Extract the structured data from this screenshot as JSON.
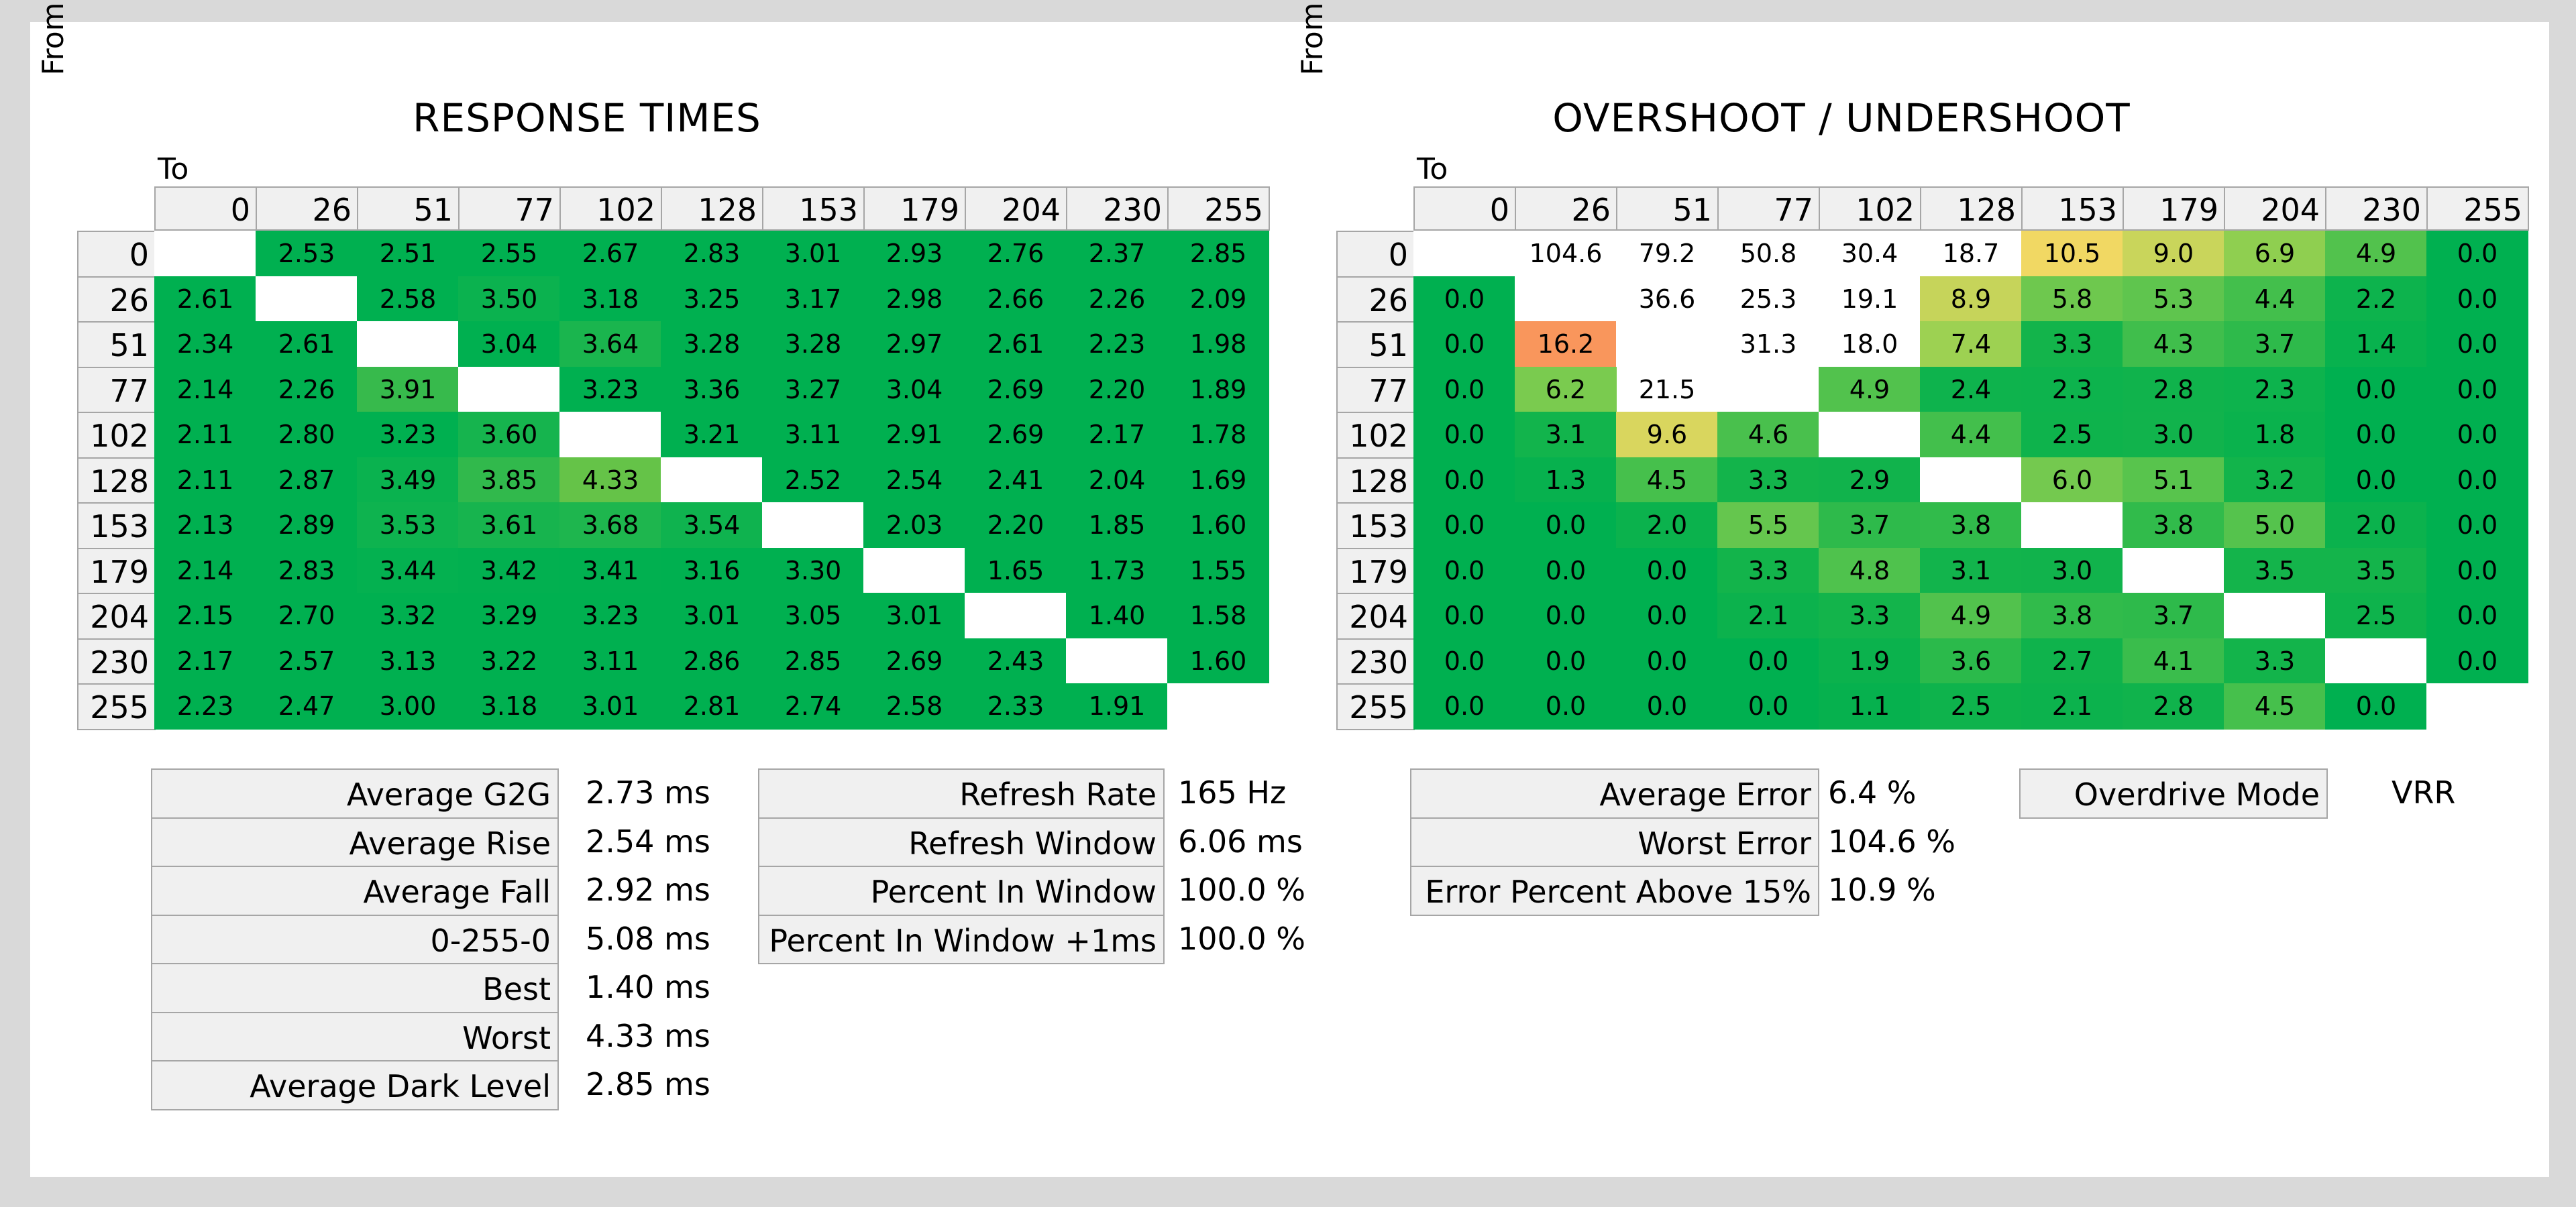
{
  "response_times": {
    "title": "RESPONSE TIMES",
    "to_label": "To",
    "from_label": "From"
  },
  "overshoot": {
    "title": "OVERSHOOT / UNDERSHOOT",
    "to_label": "To",
    "from_label": "From"
  },
  "chart_data": [
    {
      "type": "heatmap",
      "title": "RESPONSE TIMES",
      "xlabel": "To",
      "ylabel": "From",
      "x": [
        "0",
        "26",
        "51",
        "77",
        "102",
        "128",
        "153",
        "179",
        "204",
        "230",
        "255"
      ],
      "y": [
        "0",
        "26",
        "51",
        "77",
        "102",
        "128",
        "153",
        "179",
        "204",
        "230",
        "255"
      ],
      "values": [
        [
          null,
          "2.53",
          "2.51",
          "2.55",
          "2.67",
          "2.83",
          "3.01",
          "2.93",
          "2.76",
          "2.37",
          "2.85"
        ],
        [
          "2.61",
          null,
          "2.58",
          "3.50",
          "3.18",
          "3.25",
          "3.17",
          "2.98",
          "2.66",
          "2.26",
          "2.09"
        ],
        [
          "2.34",
          "2.61",
          null,
          "3.04",
          "3.64",
          "3.28",
          "3.28",
          "2.97",
          "2.61",
          "2.23",
          "1.98"
        ],
        [
          "2.14",
          "2.26",
          "3.91",
          null,
          "3.23",
          "3.36",
          "3.27",
          "3.04",
          "2.69",
          "2.20",
          "1.89"
        ],
        [
          "2.11",
          "2.80",
          "3.23",
          "3.60",
          null,
          "3.21",
          "3.11",
          "2.91",
          "2.69",
          "2.17",
          "1.78"
        ],
        [
          "2.11",
          "2.87",
          "3.49",
          "3.85",
          "4.33",
          null,
          "2.52",
          "2.54",
          "2.41",
          "2.04",
          "1.69"
        ],
        [
          "2.13",
          "2.89",
          "3.53",
          "3.61",
          "3.68",
          "3.54",
          null,
          "2.03",
          "2.20",
          "1.85",
          "1.60"
        ],
        [
          "2.14",
          "2.83",
          "3.44",
          "3.42",
          "3.41",
          "3.16",
          "3.30",
          null,
          "1.65",
          "1.73",
          "1.55"
        ],
        [
          "2.15",
          "2.70",
          "3.32",
          "3.29",
          "3.23",
          "3.01",
          "3.05",
          "3.01",
          null,
          "1.40",
          "1.58"
        ],
        [
          "2.17",
          "2.57",
          "3.13",
          "3.22",
          "3.11",
          "2.86",
          "2.85",
          "2.69",
          "2.43",
          null,
          "1.60"
        ],
        [
          "2.23",
          "2.47",
          "3.00",
          "3.18",
          "3.01",
          "2.81",
          "2.74",
          "2.58",
          "2.33",
          "1.91",
          null
        ]
      ],
      "unit": "ms"
    },
    {
      "type": "heatmap",
      "title": "OVERSHOOT / UNDERSHOOT",
      "xlabel": "To",
      "ylabel": "From",
      "x": [
        "0",
        "26",
        "51",
        "77",
        "102",
        "128",
        "153",
        "179",
        "204",
        "230",
        "255"
      ],
      "y": [
        "0",
        "26",
        "51",
        "77",
        "102",
        "128",
        "153",
        "179",
        "204",
        "230",
        "255"
      ],
      "values": [
        [
          null,
          "104.6",
          "79.2",
          "50.8",
          "30.4",
          "18.7",
          "10.5",
          "9.0",
          "6.9",
          "4.9",
          "0.0"
        ],
        [
          "0.0",
          null,
          "36.6",
          "25.3",
          "19.1",
          "8.9",
          "5.8",
          "5.3",
          "4.4",
          "2.2",
          "0.0"
        ],
        [
          "0.0",
          "16.2",
          null,
          "31.3",
          "18.0",
          "7.4",
          "3.3",
          "4.3",
          "3.7",
          "1.4",
          "0.0"
        ],
        [
          "0.0",
          "6.2",
          "21.5",
          null,
          "4.9",
          "2.4",
          "2.3",
          "2.8",
          "2.3",
          "0.0",
          "0.0"
        ],
        [
          "0.0",
          "3.1",
          "9.6",
          "4.6",
          null,
          "4.4",
          "2.5",
          "3.0",
          "1.8",
          "0.0",
          "0.0"
        ],
        [
          "0.0",
          "1.3",
          "4.5",
          "3.3",
          "2.9",
          null,
          "6.0",
          "5.1",
          "3.2",
          "0.0",
          "0.0"
        ],
        [
          "0.0",
          "0.0",
          "2.0",
          "5.5",
          "3.7",
          "3.8",
          null,
          "3.8",
          "5.0",
          "2.0",
          "0.0"
        ],
        [
          "0.0",
          "0.0",
          "0.0",
          "3.3",
          "4.8",
          "3.1",
          "3.0",
          null,
          "3.5",
          "3.5",
          "0.0"
        ],
        [
          "0.0",
          "0.0",
          "0.0",
          "2.1",
          "3.3",
          "4.9",
          "3.8",
          "3.7",
          null,
          "2.5",
          "0.0"
        ],
        [
          "0.0",
          "0.0",
          "0.0",
          "0.0",
          "1.9",
          "3.6",
          "2.7",
          "4.1",
          "3.3",
          null,
          "0.0"
        ],
        [
          "0.0",
          "0.0",
          "0.0",
          "0.0",
          "1.1",
          "2.5",
          "2.1",
          "2.8",
          "4.5",
          "0.0",
          null
        ]
      ],
      "unit": "%"
    }
  ],
  "stats": {
    "response": [
      {
        "label": "Average G2G",
        "value": "2.73 ms"
      },
      {
        "label": "Average Rise",
        "value": "2.54 ms"
      },
      {
        "label": "Average Fall",
        "value": "2.92 ms"
      },
      {
        "label": "0-255-0",
        "value": "5.08 ms"
      },
      {
        "label": "Best",
        "value": "1.40 ms"
      },
      {
        "label": "Worst",
        "value": "4.33 ms"
      },
      {
        "label": "Average Dark Level",
        "value": "2.85 ms"
      }
    ],
    "refresh": [
      {
        "label": "Refresh Rate",
        "value": "165 Hz"
      },
      {
        "label": "Refresh Window",
        "value": "6.06 ms"
      },
      {
        "label": "Percent In Window",
        "value": "100.0 %"
      },
      {
        "label": "Percent In Window +1ms",
        "value": "100.0 %"
      }
    ],
    "error": [
      {
        "label": "Average Error",
        "value": "6.4 %"
      },
      {
        "label": "Worst Error",
        "value": "104.6 %"
      },
      {
        "label": "Error Percent Above 15%",
        "value": "10.9 %"
      }
    ],
    "mode": [
      {
        "label": "Overdrive Mode",
        "value": "VRR"
      }
    ]
  }
}
